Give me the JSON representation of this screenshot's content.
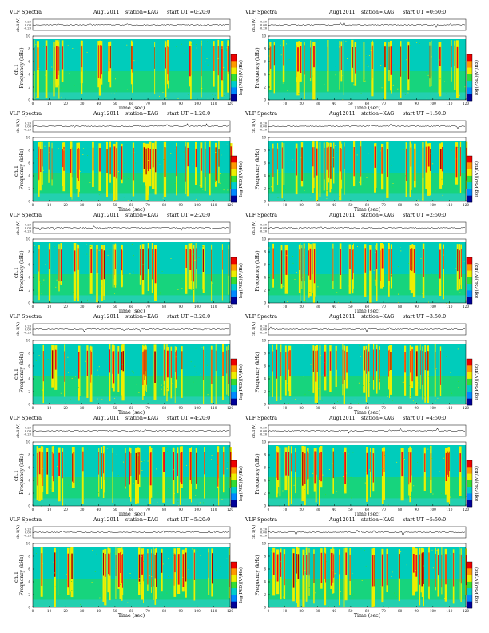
{
  "title": "VLF Spectra",
  "date": "Aug12011",
  "station": "station=KAG",
  "waveform_label": "ch.1(V)",
  "waveform_ticks": [
    "0.20",
    "0.00",
    "-0.20"
  ],
  "colorbar_label": "log(PSD)(V²/Hz)",
  "colors": {
    "bg": "#00ccbb",
    "green": "#33dd33",
    "yellow": "#eeee00",
    "red": "#ee1111",
    "darkred": "#aa0000",
    "cyan": "#33ccee",
    "colorbar": [
      "#ee0000",
      "#ff9900",
      "#eeee00",
      "#33dd33",
      "#00cccc",
      "#0088ff",
      "#000099"
    ]
  },
  "chart_data": [
    {
      "type": "heatmap",
      "start_ut": "start UT =0:20:0",
      "ylabel": "Frequency (kHz)",
      "channel_label": "ch.1",
      "xlabel": "Time (sec)",
      "xlim": [
        0,
        120
      ],
      "ylim": [
        0,
        10
      ],
      "xticks": [
        "0",
        "10",
        "20",
        "30",
        "40",
        "50",
        "60",
        "70",
        "80",
        "90",
        "100",
        "110",
        "120"
      ],
      "yticks": [
        "0",
        "2",
        "4",
        "6",
        "8",
        "10"
      ],
      "cutoff_khz": 9.5
    },
    {
      "type": "heatmap",
      "start_ut": "start UT =0:50:0",
      "ylabel": "Frequency (kHz)",
      "channel_label": "",
      "xlabel": "Time (sec)",
      "xlim": [
        0,
        120
      ],
      "ylim": [
        0,
        10
      ],
      "xticks": [
        "0",
        "10",
        "20",
        "30",
        "40",
        "50",
        "60",
        "70",
        "80",
        "90",
        "100",
        "110",
        "120"
      ],
      "yticks": [
        "0",
        "2",
        "4",
        "6",
        "8",
        "10"
      ],
      "cutoff_khz": 9.5
    },
    {
      "type": "heatmap",
      "start_ut": "start UT =1:20:0",
      "ylabel": "Frequency (kHz)",
      "channel_label": "ch.1",
      "xlabel": "Time (sec)",
      "xlim": [
        0,
        120
      ],
      "ylim": [
        0,
        10
      ],
      "xticks": [
        "0",
        "10",
        "20",
        "30",
        "40",
        "50",
        "60",
        "70",
        "80",
        "90",
        "100",
        "110",
        "120"
      ],
      "yticks": [
        "0",
        "2",
        "4",
        "6",
        "8",
        "10"
      ],
      "cutoff_khz": 9.5
    },
    {
      "type": "heatmap",
      "start_ut": "start UT =1:50:0",
      "ylabel": "Frequency (kHz)",
      "channel_label": "",
      "xlabel": "Time (sec)",
      "xlim": [
        0,
        120
      ],
      "ylim": [
        0,
        10
      ],
      "xticks": [
        "0",
        "10",
        "20",
        "30",
        "40",
        "50",
        "60",
        "70",
        "80",
        "90",
        "100",
        "110",
        "120"
      ],
      "yticks": [
        "0",
        "2",
        "4",
        "6",
        "8",
        "10"
      ],
      "cutoff_khz": 9.5
    },
    {
      "type": "heatmap",
      "start_ut": "start UT =2:20:0",
      "ylabel": "Frequency (kHz)",
      "channel_label": "ch.1",
      "xlabel": "Time (sec)",
      "xlim": [
        0,
        120
      ],
      "ylim": [
        0,
        10
      ],
      "xticks": [
        "0",
        "10",
        "20",
        "30",
        "40",
        "50",
        "60",
        "70",
        "80",
        "90",
        "100",
        "110",
        "120"
      ],
      "yticks": [
        "0",
        "2",
        "4",
        "6",
        "8",
        "10"
      ],
      "cutoff_khz": 9.5
    },
    {
      "type": "heatmap",
      "start_ut": "start UT =2:50:0",
      "ylabel": "Frequency (kHz)",
      "channel_label": "",
      "xlabel": "Time (sec)",
      "xlim": [
        0,
        120
      ],
      "ylim": [
        0,
        10
      ],
      "xticks": [
        "0",
        "10",
        "20",
        "30",
        "40",
        "50",
        "60",
        "70",
        "80",
        "90",
        "100",
        "110",
        "120"
      ],
      "yticks": [
        "0",
        "2",
        "4",
        "6",
        "8",
        "10"
      ],
      "cutoff_khz": 9.5
    },
    {
      "type": "heatmap",
      "start_ut": "start UT =3:20:0",
      "ylabel": "Frequency (kHz)",
      "channel_label": "ch.1",
      "xlabel": "Time (sec)",
      "xlim": [
        0,
        120
      ],
      "ylim": [
        0,
        10
      ],
      "xticks": [
        "0",
        "10",
        "20",
        "30",
        "40",
        "50",
        "60",
        "70",
        "80",
        "90",
        "100",
        "110",
        "120"
      ],
      "yticks": [
        "0",
        "2",
        "4",
        "6",
        "8",
        "10"
      ],
      "cutoff_khz": 9.5
    },
    {
      "type": "heatmap",
      "start_ut": "start UT =3:50:0",
      "ylabel": "Frequency (kHz)",
      "channel_label": "",
      "xlabel": "Time (sec)",
      "xlim": [
        0,
        120
      ],
      "ylim": [
        0,
        10
      ],
      "xticks": [
        "0",
        "10",
        "20",
        "30",
        "40",
        "50",
        "60",
        "70",
        "80",
        "90",
        "100",
        "110",
        "120"
      ],
      "yticks": [
        "0",
        "2",
        "4",
        "6",
        "8",
        "10"
      ],
      "cutoff_khz": 9.5
    },
    {
      "type": "heatmap",
      "start_ut": "start UT =4:20:0",
      "ylabel": "Frequency (kHz)",
      "channel_label": "ch.1",
      "xlabel": "Time (sec)",
      "xlim": [
        0,
        120
      ],
      "ylim": [
        0,
        10
      ],
      "xticks": [
        "0",
        "10",
        "20",
        "30",
        "40",
        "50",
        "60",
        "70",
        "80",
        "90",
        "100",
        "110",
        "120"
      ],
      "yticks": [
        "0",
        "2",
        "4",
        "6",
        "8",
        "10"
      ],
      "cutoff_khz": 9.5
    },
    {
      "type": "heatmap",
      "start_ut": "start UT =4:50:0",
      "ylabel": "Frequency (kHz)",
      "channel_label": "",
      "xlabel": "Time (sec)",
      "xlim": [
        0,
        120
      ],
      "ylim": [
        0,
        10
      ],
      "xticks": [
        "0",
        "10",
        "20",
        "30",
        "40",
        "50",
        "60",
        "70",
        "80",
        "90",
        "100",
        "110",
        "120"
      ],
      "yticks": [
        "0",
        "2",
        "4",
        "6",
        "8",
        "10"
      ],
      "cutoff_khz": 9.5
    },
    {
      "type": "heatmap",
      "start_ut": "start UT =5:20:0",
      "ylabel": "Frequency (kHz)",
      "channel_label": "ch.1",
      "xlabel": "Time (sec)",
      "xlim": [
        0,
        120
      ],
      "ylim": [
        0,
        10
      ],
      "xticks": [
        "0",
        "10",
        "20",
        "30",
        "40",
        "50",
        "60",
        "70",
        "80",
        "90",
        "100",
        "110",
        "120"
      ],
      "yticks": [
        "0",
        "2",
        "4",
        "6",
        "8",
        "10"
      ],
      "cutoff_khz": 9.5
    },
    {
      "type": "heatmap",
      "start_ut": "start UT =5:50:0",
      "ylabel": "Frequency (kHz)",
      "channel_label": "",
      "xlabel": "Time (sec)",
      "xlim": [
        0,
        120
      ],
      "ylim": [
        0,
        10
      ],
      "xticks": [
        "0",
        "10",
        "20",
        "30",
        "40",
        "50",
        "60",
        "70",
        "80",
        "90",
        "100",
        "110",
        "120"
      ],
      "yticks": [
        "0",
        "2",
        "4",
        "6",
        "8",
        "10"
      ],
      "cutoff_khz": 9.5
    }
  ]
}
